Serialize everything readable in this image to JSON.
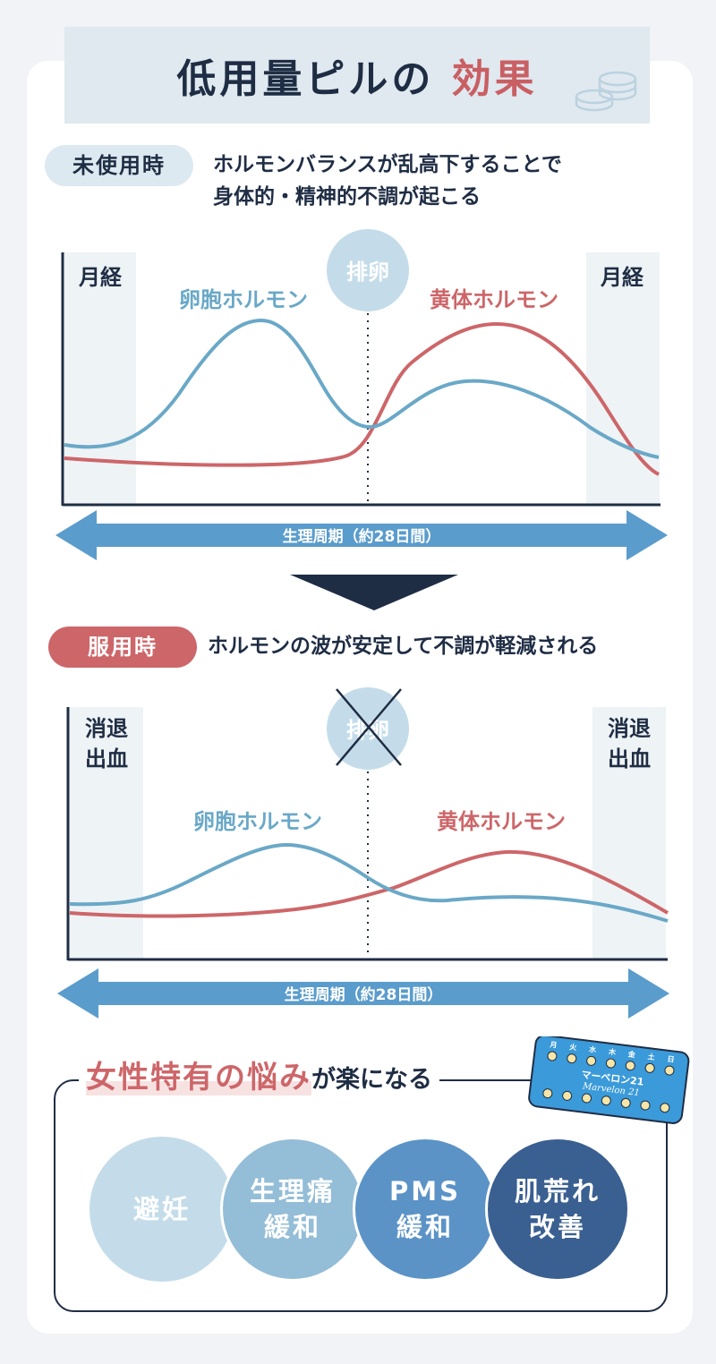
{
  "header": {
    "title_main": "低用量ピルの",
    "title_accent": "効果"
  },
  "before": {
    "badge": "未使用時",
    "description_line1": "ホルモンバランスが乱高下することで",
    "description_line2": "身体的・精神的不調が起こる",
    "label_left_period": "月経",
    "label_right_period": "月経",
    "label_ovulation": "排卵",
    "label_follicle": "卵胞ホルモン",
    "label_luteal": "黄体ホルモン",
    "cycle_label": "生理周期（約28日間）"
  },
  "arrow_down": "down-arrow-icon",
  "after": {
    "badge": "服用時",
    "description": "ホルモンの波が安定して不調が軽減される",
    "label_left_bleed_1": "消退",
    "label_left_bleed_2": "出血",
    "label_right_bleed_1": "消退",
    "label_right_bleed_2": "出血",
    "label_ovulation": "排卵",
    "label_follicle": "卵胞ホルモン",
    "label_luteal": "黄体ホルモン",
    "cycle_label": "生理周期（約28日間）"
  },
  "concerns": {
    "highlight": "女性特有の悩み",
    "rest": "が楽になる",
    "pill_pack": {
      "days": [
        "月",
        "火",
        "水",
        "木",
        "金",
        "土",
        "日"
      ],
      "brand_jp": "マーベロン21",
      "brand_en": "Marvelon 21"
    },
    "items": [
      {
        "line1": "避妊",
        "line2": ""
      },
      {
        "line1": "生理痛",
        "line2": "緩和"
      },
      {
        "line1": "PMS",
        "line2": "緩和"
      },
      {
        "line1": "肌荒れ",
        "line2": "改善"
      }
    ]
  },
  "colors": {
    "navy": "#1f2d44",
    "follicle_blue": "#6aa8c7",
    "luteal_red": "#cd6669",
    "arrow_blue": "#5a9ccc",
    "circle_1": "#c4dcea",
    "circle_2": "#94bdd7",
    "circle_3": "#5b93c7",
    "circle_4": "#3a5f91"
  },
  "chart_data": [
    {
      "type": "line",
      "title": "未使用時",
      "x": [
        "月経",
        "排卵",
        "月経"
      ],
      "series": [
        {
          "name": "卵胞ホルモン",
          "shape": "high peak before ovulation, moderate bump after"
        },
        {
          "name": "黄体ホルモン",
          "shape": "low until ovulation, high peak after, drops at end"
        }
      ],
      "xlabel": "生理周期（約28日間）"
    },
    {
      "type": "line",
      "title": "服用時",
      "x": [
        "消退出血",
        "排卵 (suppressed)",
        "消退出血"
      ],
      "series": [
        {
          "name": "卵胞ホルモン",
          "shape": "low, gentle waves"
        },
        {
          "name": "黄体ホルモン",
          "shape": "low, gentle waves"
        }
      ],
      "xlabel": "生理周期（約28日間）"
    }
  ]
}
